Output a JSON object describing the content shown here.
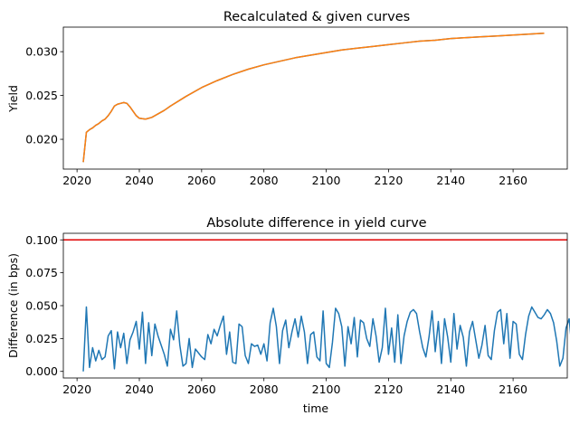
{
  "chart_data": [
    {
      "type": "line",
      "title": "Recalculated & given curves",
      "xlabel": "",
      "ylabel": "Yield",
      "xlim": [
        2015.6,
        2177.4
      ],
      "ylim": [
        0.0166,
        0.0328
      ],
      "xticks": [
        2020,
        2040,
        2060,
        2080,
        2100,
        2120,
        2140,
        2160
      ],
      "yticks": [
        0.02,
        0.025,
        0.03
      ],
      "ytick_labels": [
        "0.020",
        "0.025",
        "0.030"
      ],
      "grid": false,
      "series": [
        {
          "color": "#1f77b4",
          "x": [
            2022,
            2023,
            2024,
            2025,
            2026,
            2027,
            2028,
            2029,
            2030,
            2031,
            2032,
            2033,
            2034,
            2035,
            2036,
            2037,
            2038,
            2039,
            2040,
            2042,
            2044,
            2046,
            2048,
            2050,
            2055,
            2060,
            2065,
            2070,
            2075,
            2080,
            2085,
            2090,
            2095,
            2100,
            2105,
            2110,
            2115,
            2120,
            2125,
            2130,
            2135,
            2140,
            2145,
            2150,
            2155,
            2160,
            2165,
            2170
          ],
          "y": [
            0.0174,
            0.0208,
            0.0211,
            0.0213,
            0.0216,
            0.0218,
            0.0221,
            0.0223,
            0.0227,
            0.0232,
            0.0238,
            0.024,
            0.0241,
            0.0242,
            0.0241,
            0.0237,
            0.0232,
            0.0227,
            0.0224,
            0.0223,
            0.0225,
            0.0229,
            0.0233,
            0.0238,
            0.0249,
            0.0259,
            0.0267,
            0.0274,
            0.028,
            0.0285,
            0.0289,
            0.0293,
            0.0296,
            0.0299,
            0.0302,
            0.0304,
            0.0306,
            0.0308,
            0.031,
            0.0312,
            0.0313,
            0.0315,
            0.0316,
            0.0317,
            0.0318,
            0.0319,
            0.032,
            0.0321
          ]
        },
        {
          "color": "#ff7f0e",
          "x": [
            2022,
            2023,
            2024,
            2025,
            2026,
            2027,
            2028,
            2029,
            2030,
            2031,
            2032,
            2033,
            2034,
            2035,
            2036,
            2037,
            2038,
            2039,
            2040,
            2042,
            2044,
            2046,
            2048,
            2050,
            2055,
            2060,
            2065,
            2070,
            2075,
            2080,
            2085,
            2090,
            2095,
            2100,
            2105,
            2110,
            2115,
            2120,
            2125,
            2130,
            2135,
            2140,
            2145,
            2150,
            2155,
            2160,
            2165,
            2170
          ],
          "y": [
            0.0174,
            0.0208,
            0.0211,
            0.0213,
            0.0216,
            0.0218,
            0.0221,
            0.0223,
            0.0227,
            0.0232,
            0.0238,
            0.024,
            0.0241,
            0.0242,
            0.0241,
            0.0237,
            0.0232,
            0.0227,
            0.0224,
            0.0223,
            0.0225,
            0.0229,
            0.0233,
            0.0238,
            0.0249,
            0.0259,
            0.0267,
            0.0274,
            0.028,
            0.0285,
            0.0289,
            0.0293,
            0.0296,
            0.0299,
            0.0302,
            0.0304,
            0.0306,
            0.0308,
            0.031,
            0.0312,
            0.0313,
            0.0315,
            0.0316,
            0.0317,
            0.0318,
            0.0319,
            0.032,
            0.0321
          ]
        }
      ]
    },
    {
      "type": "line",
      "title": "Absolute difference in yield curve",
      "xlabel": "time",
      "ylabel": "Difference (in bps)",
      "xlim": [
        2015.6,
        2177.4
      ],
      "ylim": [
        -0.005,
        0.105
      ],
      "xticks": [
        2020,
        2040,
        2060,
        2080,
        2100,
        2120,
        2140,
        2160
      ],
      "yticks": [
        0.0,
        0.025,
        0.05,
        0.075,
        0.1
      ],
      "ytick_labels": [
        "0.000",
        "0.025",
        "0.050",
        "0.075",
        "0.100"
      ],
      "grid": false,
      "hline": {
        "y": 0.1,
        "color": "#e00000"
      },
      "series": [
        {
          "color": "#1f77b4",
          "x_start": 2022,
          "x_step": 1,
          "y": [
            0.0,
            0.049,
            0.003,
            0.018,
            0.008,
            0.016,
            0.009,
            0.011,
            0.027,
            0.031,
            0.002,
            0.03,
            0.018,
            0.029,
            0.006,
            0.024,
            0.03,
            0.038,
            0.017,
            0.045,
            0.006,
            0.037,
            0.012,
            0.036,
            0.027,
            0.02,
            0.013,
            0.004,
            0.032,
            0.024,
            0.046,
            0.02,
            0.004,
            0.006,
            0.025,
            0.003,
            0.017,
            0.014,
            0.011,
            0.009,
            0.028,
            0.021,
            0.032,
            0.027,
            0.035,
            0.042,
            0.013,
            0.03,
            0.007,
            0.006,
            0.036,
            0.034,
            0.012,
            0.006,
            0.021,
            0.019,
            0.02,
            0.013,
            0.021,
            0.008,
            0.037,
            0.048,
            0.034,
            0.006,
            0.031,
            0.039,
            0.018,
            0.03,
            0.04,
            0.026,
            0.042,
            0.03,
            0.006,
            0.028,
            0.03,
            0.011,
            0.008,
            0.046,
            0.006,
            0.003,
            0.022,
            0.048,
            0.044,
            0.034,
            0.004,
            0.034,
            0.021,
            0.041,
            0.011,
            0.039,
            0.037,
            0.025,
            0.019,
            0.04,
            0.027,
            0.007,
            0.018,
            0.048,
            0.013,
            0.033,
            0.007,
            0.043,
            0.006,
            0.027,
            0.038,
            0.045,
            0.047,
            0.044,
            0.03,
            0.018,
            0.011,
            0.026,
            0.046,
            0.015,
            0.038,
            0.006,
            0.04,
            0.026,
            0.007,
            0.044,
            0.017,
            0.035,
            0.026,
            0.004,
            0.03,
            0.038,
            0.024,
            0.01,
            0.02,
            0.035,
            0.012,
            0.009,
            0.031,
            0.045,
            0.047,
            0.021,
            0.044,
            0.01,
            0.038,
            0.036,
            0.013,
            0.009,
            0.028,
            0.042,
            0.049,
            0.045,
            0.041,
            0.04,
            0.043,
            0.047,
            0.044,
            0.037,
            0.023,
            0.004,
            0.01,
            0.033,
            0.04,
            0.015,
            0.013,
            0.044,
            0.026,
            0.012
          ]
        }
      ]
    }
  ]
}
